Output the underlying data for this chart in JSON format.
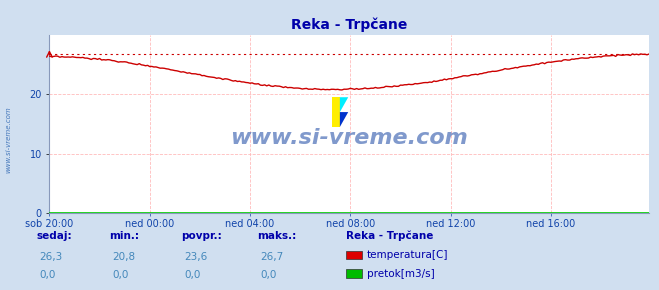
{
  "title": "Reka - Trpčane",
  "bg_color": "#d0dff0",
  "plot_bg_color": "#ffffff",
  "grid_color": "#ffbbbb",
  "x_labels": [
    "sob 20:00",
    "ned 00:00",
    "ned 04:00",
    "ned 08:00",
    "ned 12:00",
    "ned 16:00"
  ],
  "x_ticks_pos": [
    0,
    48,
    96,
    144,
    192,
    240
  ],
  "x_max": 287,
  "ylim": [
    0,
    30
  ],
  "yticks": [
    0,
    10,
    20
  ],
  "temp_color": "#cc0000",
  "pretok_color": "#00cc00",
  "dashed_line_color": "#cc0000",
  "watermark_text": "www.si-vreme.com",
  "watermark_color": "#5577bb",
  "left_label": "www.si-vreme.com",
  "legend_title": "Reka - Trpčane",
  "legend_items": [
    {
      "label": "temperatura[C]",
      "color": "#dd0000"
    },
    {
      "label": "pretok[m3/s]",
      "color": "#00bb00"
    }
  ],
  "stats_headers": [
    "sedaj:",
    "min.:",
    "povpr.:",
    "maks.:"
  ],
  "stats_temp": [
    "26,3",
    "20,8",
    "23,6",
    "26,7"
  ],
  "stats_pretok": [
    "0,0",
    "0,0",
    "0,0",
    "0,0"
  ],
  "temp_min": 20.8,
  "temp_max": 26.7,
  "n_points": 288
}
